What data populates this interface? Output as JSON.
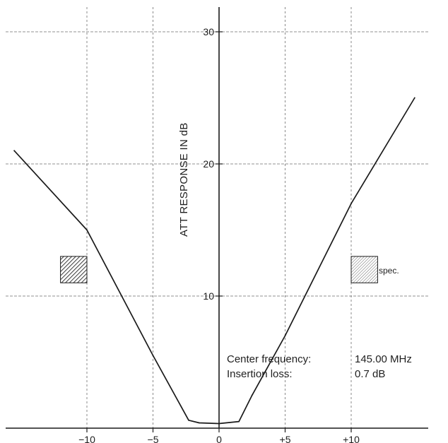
{
  "chart_data": {
    "type": "line",
    "title": "",
    "xlabel": "",
    "ylabel": "ATT RESPONSE IN dB",
    "xlim": [
      -16,
      16
    ],
    "ylim": [
      0,
      32
    ],
    "xticks": [
      {
        "value": -10,
        "label": "−10"
      },
      {
        "value": -5,
        "label": "−5"
      },
      {
        "value": 0,
        "label": "0"
      },
      {
        "value": 5,
        "label": "+5"
      },
      {
        "value": 10,
        "label": "+10"
      }
    ],
    "yticks": [
      {
        "value": 10,
        "label": "10"
      },
      {
        "value": 20,
        "label": "20"
      },
      {
        "value": 30,
        "label": "30"
      }
    ],
    "grid": true,
    "series": [
      {
        "x": [
          -15.5,
          -10,
          -5,
          -2.3,
          -1.5,
          0,
          1.5,
          2.5,
          5,
          10,
          14.8
        ],
        "y": [
          21,
          15,
          5.5,
          0.6,
          0.4,
          0.35,
          0.5,
          2.5,
          7,
          17,
          25
        ]
      }
    ],
    "spec_markers": [
      {
        "x_from": -12,
        "x_to": -10,
        "y_from": 11,
        "y_to": 13
      },
      {
        "x_from": 10,
        "x_to": 12,
        "y_from": 11,
        "y_to": 13,
        "label": "spec."
      }
    ],
    "annotations": [
      {
        "label": "Center frequency:",
        "value": "145.00 MHz"
      },
      {
        "label": "Insertion loss:",
        "value": "0.7 dB"
      }
    ]
  },
  "colors": {
    "line": "#1a1a1a",
    "grid": "#6e6e6e",
    "axis": "#1a1a1a",
    "hatch": "#3a3a3a"
  }
}
